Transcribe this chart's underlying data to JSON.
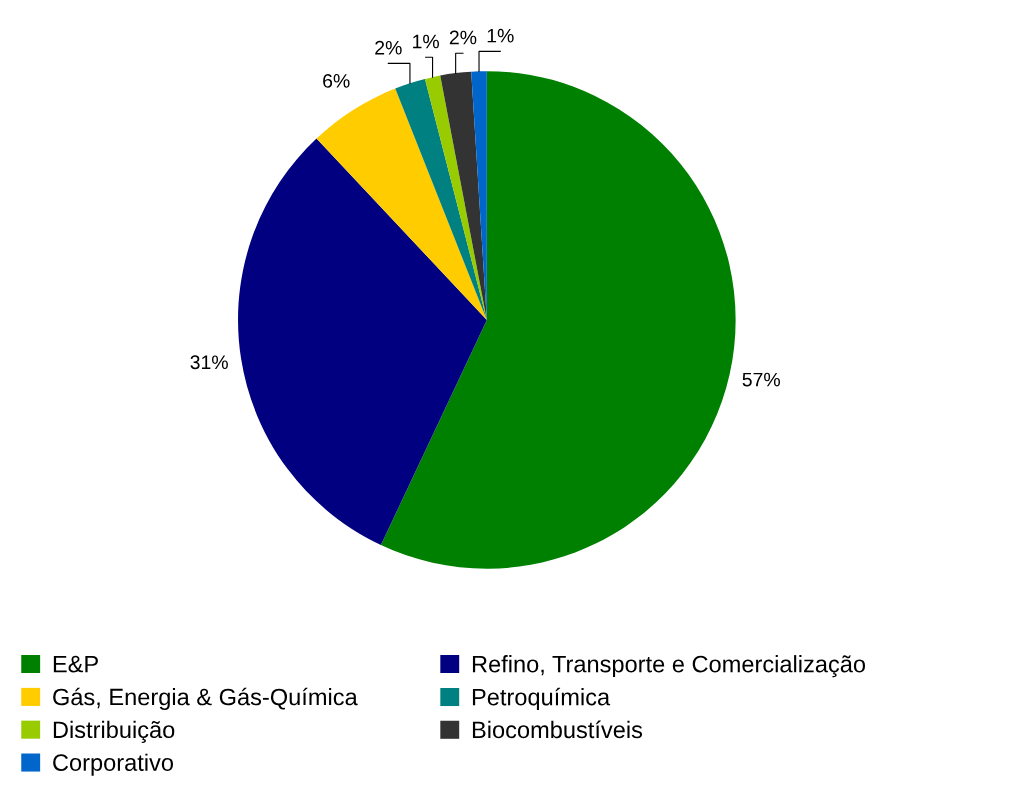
{
  "chart_data": {
    "type": "pie",
    "categories": [
      "E&P",
      "Refino, Transporte e Comercialização",
      "Gás, Energia & Gás-Química",
      "Petroquímica",
      "Distribuição",
      "Biocombustíveis",
      "Corporativo"
    ],
    "values": [
      57,
      31,
      6,
      2,
      1,
      2,
      1
    ],
    "colors": [
      "#008000",
      "#000080",
      "#ffcc00",
      "#008080",
      "#99cc00",
      "#333333",
      "#0066cc"
    ],
    "value_labels": [
      "57%",
      "31%",
      "6%",
      "2%",
      "1%",
      "2%",
      "1%"
    ],
    "legend": "bottom"
  }
}
